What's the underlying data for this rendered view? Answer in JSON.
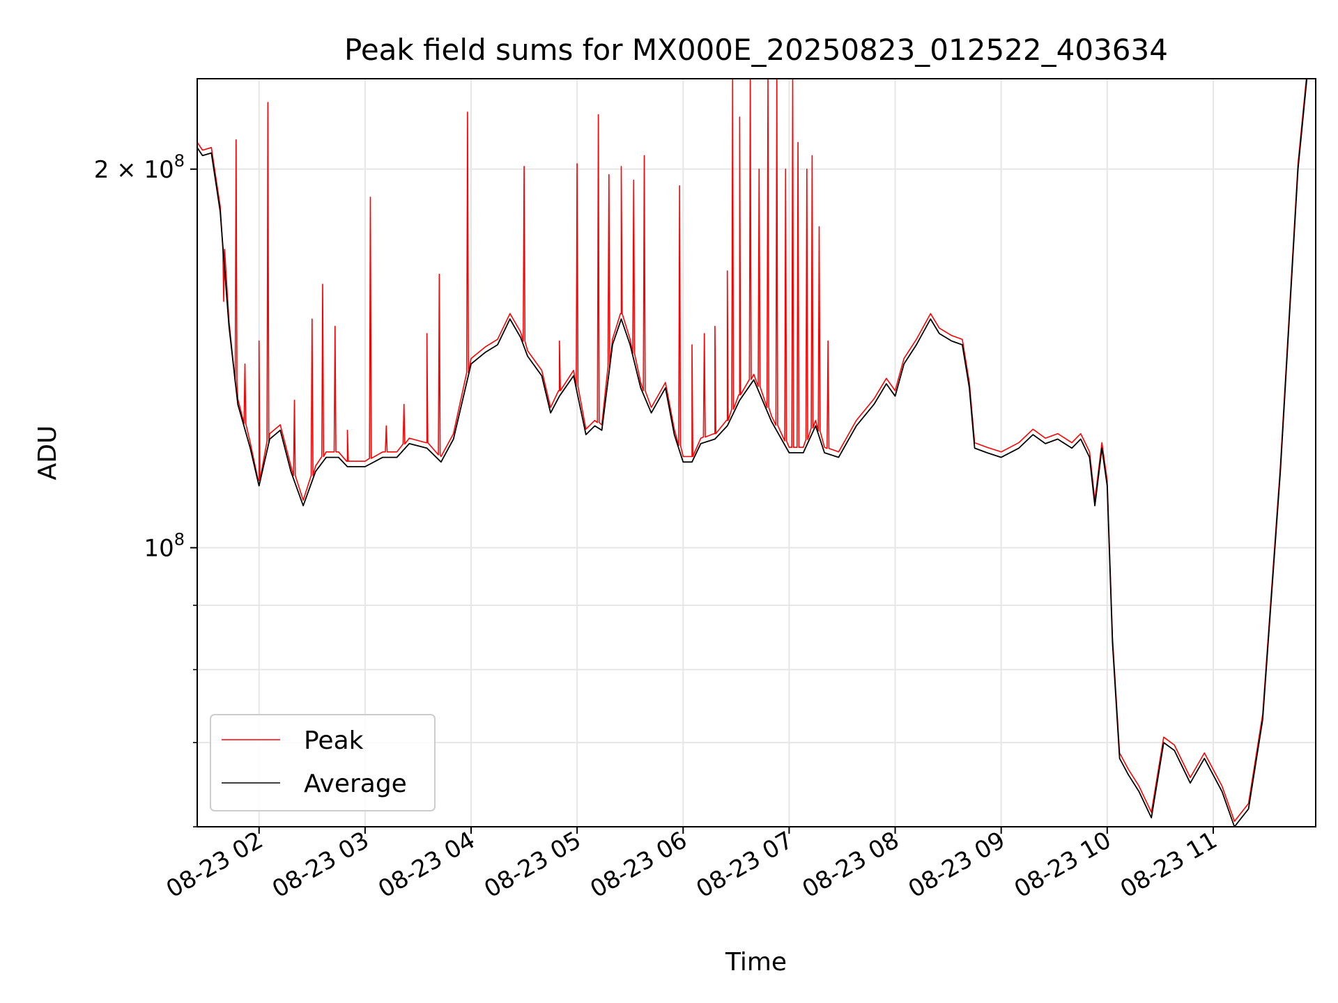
{
  "chart_data": {
    "type": "line",
    "title": "Peak field sums for MX000E_20250823_012522_403634",
    "xlabel": "Time",
    "ylabel": "ADU",
    "yscale": "log",
    "grid": true,
    "legend_position": "lower-left",
    "xlim": [
      "2025-08-23 01:25",
      "2025-08-23 11:58"
    ],
    "ylim": [
      60000000,
      236000000
    ],
    "x_ticks": [
      "08-23 02",
      "08-23 03",
      "08-23 04",
      "08-23 05",
      "08-23 06",
      "08-23 07",
      "08-23 08",
      "08-23 09",
      "08-23 10",
      "08-23 11"
    ],
    "y_ticks": [
      {
        "label": "2×10⁸",
        "base": "2 × 10",
        "exp": "8",
        "value": 200000000
      },
      {
        "label": "10⁸",
        "base": "10",
        "exp": "8",
        "value": 100000000
      }
    ],
    "series": [
      {
        "name": "Average",
        "color": "#000000",
        "points": [
          [
            "2025-08-23 01:25",
            208000000
          ],
          [
            "2025-08-23 01:28",
            205000000
          ],
          [
            "2025-08-23 01:33",
            206000000
          ],
          [
            "2025-08-23 01:38",
            185000000
          ],
          [
            "2025-08-23 01:43",
            150000000
          ],
          [
            "2025-08-23 01:48",
            130000000
          ],
          [
            "2025-08-23 01:55",
            120000000
          ],
          [
            "2025-08-23 02:00",
            112000000
          ],
          [
            "2025-08-23 02:06",
            122000000
          ],
          [
            "2025-08-23 02:12",
            124000000
          ],
          [
            "2025-08-23 02:18",
            115000000
          ],
          [
            "2025-08-23 02:25",
            108000000
          ],
          [
            "2025-08-23 02:32",
            115000000
          ],
          [
            "2025-08-23 02:38",
            118000000
          ],
          [
            "2025-08-23 02:45",
            118000000
          ],
          [
            "2025-08-23 02:50",
            116000000
          ],
          [
            "2025-08-23 03:00",
            116000000
          ],
          [
            "2025-08-23 03:10",
            118000000
          ],
          [
            "2025-08-23 03:18",
            118000000
          ],
          [
            "2025-08-23 03:25",
            121000000
          ],
          [
            "2025-08-23 03:35",
            120000000
          ],
          [
            "2025-08-23 03:43",
            117000000
          ],
          [
            "2025-08-23 03:50",
            122000000
          ],
          [
            "2025-08-23 04:00",
            140000000
          ],
          [
            "2025-08-23 04:08",
            143000000
          ],
          [
            "2025-08-23 04:15",
            145000000
          ],
          [
            "2025-08-23 04:22",
            152000000
          ],
          [
            "2025-08-23 04:28",
            147000000
          ],
          [
            "2025-08-23 04:32",
            142000000
          ],
          [
            "2025-08-23 04:40",
            137000000
          ],
          [
            "2025-08-23 04:45",
            128000000
          ],
          [
            "2025-08-23 04:50",
            132000000
          ],
          [
            "2025-08-23 04:58",
            137000000
          ],
          [
            "2025-08-23 05:05",
            123000000
          ],
          [
            "2025-08-23 05:10",
            125000000
          ],
          [
            "2025-08-23 05:14",
            124000000
          ],
          [
            "2025-08-23 05:20",
            145000000
          ],
          [
            "2025-08-23 05:25",
            152000000
          ],
          [
            "2025-08-23 05:30",
            145000000
          ],
          [
            "2025-08-23 05:36",
            134000000
          ],
          [
            "2025-08-23 05:42",
            128000000
          ],
          [
            "2025-08-23 05:50",
            134000000
          ],
          [
            "2025-08-23 05:55",
            123000000
          ],
          [
            "2025-08-23 06:00",
            117000000
          ],
          [
            "2025-08-23 06:05",
            117000000
          ],
          [
            "2025-08-23 06:10",
            121000000
          ],
          [
            "2025-08-23 06:18",
            122000000
          ],
          [
            "2025-08-23 06:25",
            125000000
          ],
          [
            "2025-08-23 06:32",
            131000000
          ],
          [
            "2025-08-23 06:40",
            136000000
          ],
          [
            "2025-08-23 06:50",
            126000000
          ],
          [
            "2025-08-23 07:00",
            119000000
          ],
          [
            "2025-08-23 07:08",
            119000000
          ],
          [
            "2025-08-23 07:15",
            125000000
          ],
          [
            "2025-08-23 07:20",
            119000000
          ],
          [
            "2025-08-23 07:28",
            118000000
          ],
          [
            "2025-08-23 07:38",
            125000000
          ],
          [
            "2025-08-23 07:48",
            130000000
          ],
          [
            "2025-08-23 07:55",
            135000000
          ],
          [
            "2025-08-23 08:00",
            132000000
          ],
          [
            "2025-08-23 08:05",
            140000000
          ],
          [
            "2025-08-23 08:12",
            145000000
          ],
          [
            "2025-08-23 08:20",
            152000000
          ],
          [
            "2025-08-23 08:25",
            148000000
          ],
          [
            "2025-08-23 08:32",
            146000000
          ],
          [
            "2025-08-23 08:38",
            145000000
          ],
          [
            "2025-08-23 08:42",
            134000000
          ],
          [
            "2025-08-23 08:45",
            120000000
          ],
          [
            "2025-08-23 08:52",
            119000000
          ],
          [
            "2025-08-23 09:00",
            118000000
          ],
          [
            "2025-08-23 09:10",
            120000000
          ],
          [
            "2025-08-23 09:18",
            123000000
          ],
          [
            "2025-08-23 09:25",
            121000000
          ],
          [
            "2025-08-23 09:32",
            122000000
          ],
          [
            "2025-08-23 09:40",
            120000000
          ],
          [
            "2025-08-23 09:45",
            122000000
          ],
          [
            "2025-08-23 09:50",
            118000000
          ],
          [
            "2025-08-23 09:53",
            108000000
          ],
          [
            "2025-08-23 09:57",
            120000000
          ],
          [
            "2025-08-23 10:00",
            112000000
          ],
          [
            "2025-08-23 10:03",
            84000000
          ],
          [
            "2025-08-23 10:07",
            68000000
          ],
          [
            "2025-08-23 10:12",
            66000000
          ],
          [
            "2025-08-23 10:18",
            64000000
          ],
          [
            "2025-08-23 10:25",
            61000000
          ],
          [
            "2025-08-23 10:32",
            70000000
          ],
          [
            "2025-08-23 10:38",
            69000000
          ],
          [
            "2025-08-23 10:47",
            65000000
          ],
          [
            "2025-08-23 10:55",
            68000000
          ],
          [
            "2025-08-23 11:05",
            64000000
          ],
          [
            "2025-08-23 11:12",
            60000000
          ],
          [
            "2025-08-23 11:20",
            62000000
          ],
          [
            "2025-08-23 11:28",
            73000000
          ],
          [
            "2025-08-23 11:38",
            115000000
          ],
          [
            "2025-08-23 11:48",
            200000000
          ],
          [
            "2025-08-23 11:53",
            236000000
          ],
          [
            "2025-08-23 11:58",
            236000000
          ]
        ]
      },
      {
        "name": "Peak",
        "color": "#ff0000",
        "spikes": [
          [
            "2025-08-23 01:40",
            157000000
          ],
          [
            "2025-08-23 01:47",
            211000000
          ],
          [
            "2025-08-23 01:52",
            140000000
          ],
          [
            "2025-08-23 02:00",
            146000000
          ],
          [
            "2025-08-23 02:05",
            226000000
          ],
          [
            "2025-08-23 02:20",
            131000000
          ],
          [
            "2025-08-23 02:30",
            152000000
          ],
          [
            "2025-08-23 02:36",
            162000000
          ],
          [
            "2025-08-23 02:43",
            150000000
          ],
          [
            "2025-08-23 02:50",
            124000000
          ],
          [
            "2025-08-23 03:03",
            190000000
          ],
          [
            "2025-08-23 03:12",
            125000000
          ],
          [
            "2025-08-23 03:22",
            130000000
          ],
          [
            "2025-08-23 03:35",
            148000000
          ],
          [
            "2025-08-23 03:42",
            165000000
          ],
          [
            "2025-08-23 03:58",
            222000000
          ],
          [
            "2025-08-23 04:30",
            201000000
          ],
          [
            "2025-08-23 04:50",
            146000000
          ],
          [
            "2025-08-23 05:00",
            202000000
          ],
          [
            "2025-08-23 05:12",
            221000000
          ],
          [
            "2025-08-23 05:18",
            198000000
          ],
          [
            "2025-08-23 05:25",
            201000000
          ],
          [
            "2025-08-23 05:32",
            196000000
          ],
          [
            "2025-08-23 05:38",
            205000000
          ],
          [
            "2025-08-23 05:58",
            194000000
          ],
          [
            "2025-08-23 06:05",
            145000000
          ],
          [
            "2025-08-23 06:12",
            148000000
          ],
          [
            "2025-08-23 06:18",
            150000000
          ],
          [
            "2025-08-23 06:25",
            166000000
          ],
          [
            "2025-08-23 06:28",
            236000000
          ],
          [
            "2025-08-23 06:32",
            220000000
          ],
          [
            "2025-08-23 06:38",
            236000000
          ],
          [
            "2025-08-23 06:43",
            200000000
          ],
          [
            "2025-08-23 06:48",
            236000000
          ],
          [
            "2025-08-23 06:53",
            236000000
          ],
          [
            "2025-08-23 06:58",
            200000000
          ],
          [
            "2025-08-23 07:02",
            236000000
          ],
          [
            "2025-08-23 07:05",
            210000000
          ],
          [
            "2025-08-23 07:10",
            200000000
          ],
          [
            "2025-08-23 07:13",
            205000000
          ],
          [
            "2025-08-23 07:17",
            180000000
          ],
          [
            "2025-08-23 07:22",
            146000000
          ]
        ]
      }
    ]
  }
}
